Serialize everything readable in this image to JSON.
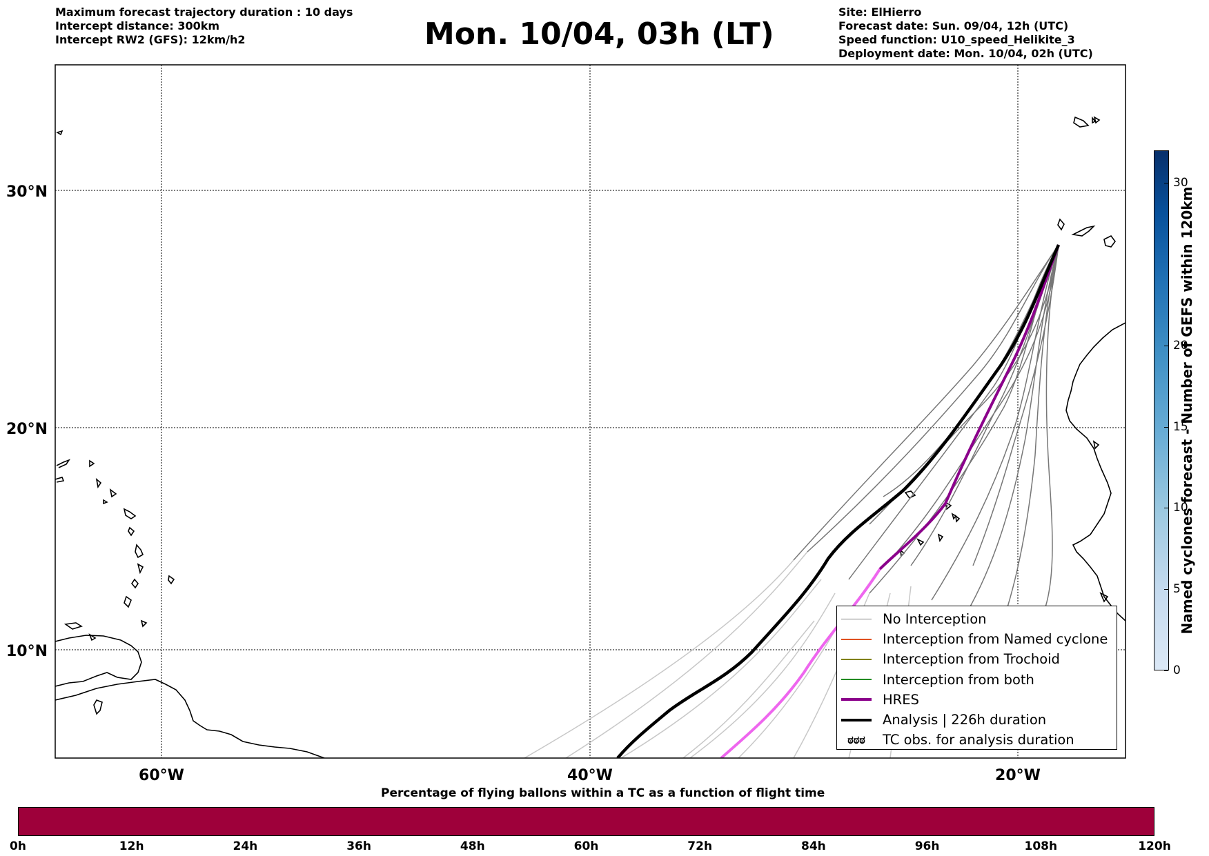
{
  "header": {
    "left_lines": [
      "Maximum forecast trajectory duration : 10 days",
      "Intercept distance: 300km",
      "Intercept RW2 (GFS):  12km/h2"
    ],
    "title": "Mon. 10/04, 03h (LT)",
    "right_lines": [
      "Site: ElHierro",
      "Forecast date: Sun. 09/04, 12h (UTC)",
      "Speed function: U10_speed_Helikite_3",
      "Deployment date: Mon. 10/04, 02h (UTC)"
    ]
  },
  "map": {
    "lat_labels": [
      "30°N",
      "20°N",
      "10°N"
    ],
    "lon_labels": [
      "60°W",
      "40°W",
      "20°W"
    ],
    "colors": {
      "trajectory_gray": "#777777",
      "trajectory_light": "#c8c8c8",
      "hres": "#8b008b",
      "hres_light": "#ee66ee",
      "analysis": "#000000"
    }
  },
  "legend": {
    "items": [
      {
        "label": "No Interception",
        "color": "#808080",
        "style": "thin"
      },
      {
        "label": "Interception from Named cyclone",
        "color": "#e05020",
        "style": "thin"
      },
      {
        "label": "Interception from Trochoid",
        "color": "#808000",
        "style": "thin"
      },
      {
        "label": "Interception from both",
        "color": "#228b22",
        "style": "thin"
      },
      {
        "label": "HRES",
        "color": "#8b008b",
        "style": "thick"
      },
      {
        "label": "Analysis | 226h duration",
        "color": "#000000",
        "style": "thick"
      },
      {
        "label": "TC obs. for analysis duration",
        "color": "#000000",
        "style": "symbol",
        "symbol": "ಠಠಠ"
      }
    ]
  },
  "colorbar": {
    "title": "Named cyclones forecast - Number of GEFS within 120km",
    "ticks": [
      "0",
      "5",
      "10",
      "15",
      "20",
      "30"
    ],
    "range": [
      0,
      32
    ]
  },
  "flight_bar": {
    "title": "Percentage of flying ballons within a TC as a function of flight time",
    "ticks": [
      "0h",
      "12h",
      "24h",
      "36h",
      "48h",
      "60h",
      "72h",
      "84h",
      "96h",
      "108h",
      "120h"
    ],
    "color": "#9e003a"
  }
}
